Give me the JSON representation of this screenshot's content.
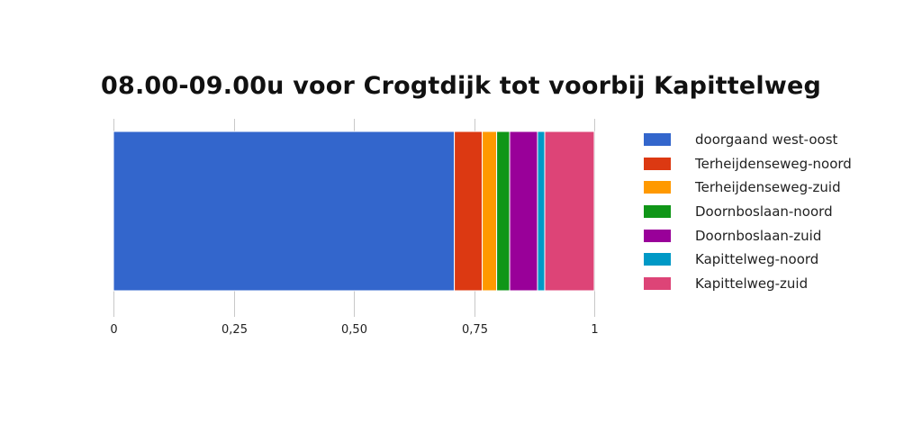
{
  "title": "08.00-09.00u voor Crogtdijk tot voorbij Kapittelweg",
  "chart_data": {
    "type": "bar",
    "orientation": "horizontal",
    "stacked": "percent",
    "title": "08.00-09.00u voor Crogtdijk tot voorbij Kapittelweg",
    "xlim": [
      0,
      1
    ],
    "x_ticks": [
      0,
      0.25,
      0.5,
      0.75,
      1
    ],
    "x_tick_labels": [
      "0",
      "0,25",
      "0,50",
      "0,75",
      "1"
    ],
    "grid": true,
    "legend_position": "right",
    "series": [
      {
        "name": "doorgaand west-oost",
        "value": 0.709,
        "color": "#3366cc"
      },
      {
        "name": "Terheijdenseweg-noord",
        "value": 0.058,
        "color": "#dc3912"
      },
      {
        "name": "Terheijdenseweg-zuid",
        "value": 0.03,
        "color": "#ff9900"
      },
      {
        "name": "Doornboslaan-noord",
        "value": 0.027,
        "color": "#109618"
      },
      {
        "name": "Doornboslaan-zuid",
        "value": 0.058,
        "color": "#990099"
      },
      {
        "name": "Kapittelweg-noord",
        "value": 0.015,
        "color": "#0099c6"
      },
      {
        "name": "Kapittelweg-zuid",
        "value": 0.103,
        "color": "#dd4477"
      }
    ]
  }
}
